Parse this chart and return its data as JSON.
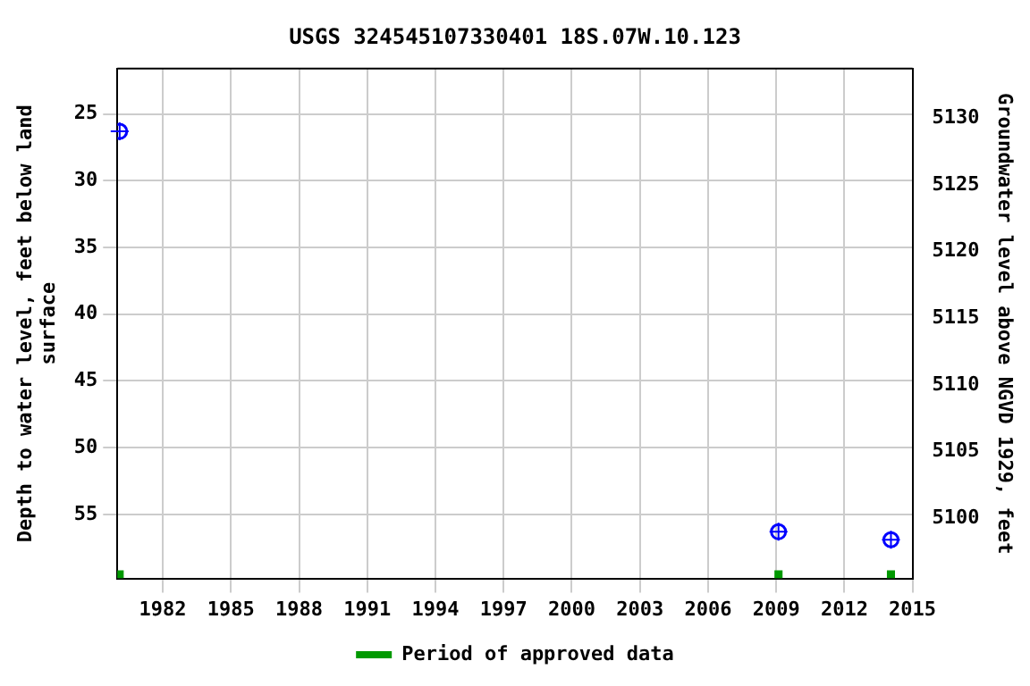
{
  "chart_data": {
    "type": "scatter",
    "title": "USGS 324545107330401 18S.07W.10.123",
    "ylabel": "Depth to water level, feet below land surface",
    "y2label": "Groundwater level above NGVD 1929, feet",
    "series": [
      {
        "color": "#0000ff",
        "marker": "circle",
        "x": [
          1980.1,
          2009.1,
          2014.05
        ],
        "values": [
          26.3,
          56.3,
          56.9
        ]
      },
      {
        "name": "Period of approved data",
        "color": "#009900",
        "marker": "square",
        "x": [
          1980.1,
          2009.1,
          2014.05
        ],
        "values": [
          59.5,
          59.5,
          59.5
        ]
      }
    ],
    "xlim": [
      1980,
      2015
    ],
    "xticks": [
      1982,
      1985,
      1988,
      1991,
      1994,
      1997,
      2000,
      2003,
      2006,
      2009,
      2012,
      2015
    ],
    "ylim": [
      59.8,
      21.6
    ],
    "yticks": [
      25,
      30,
      35,
      40,
      45,
      50,
      55
    ],
    "y2lim": [
      5095.5,
      5133.7
    ],
    "y2ticks": [
      5100,
      5105,
      5110,
      5115,
      5120,
      5125,
      5130
    ],
    "grid": true,
    "legend": "bottom"
  }
}
